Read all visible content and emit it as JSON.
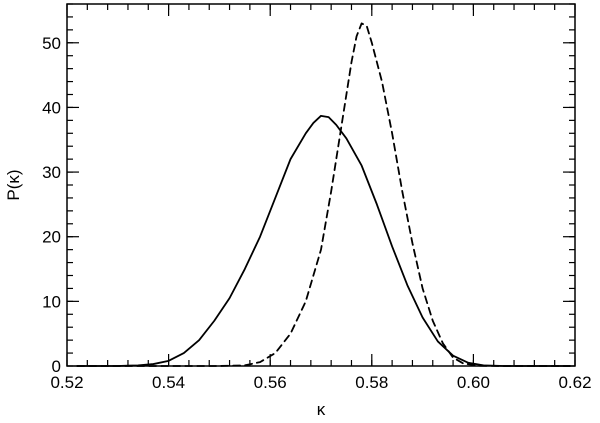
{
  "chart_data": {
    "type": "line",
    "title": "",
    "xlabel": "κ",
    "ylabel": "P(κ)",
    "xlim": [
      0.52,
      0.62
    ],
    "ylim": [
      0,
      56
    ],
    "x_ticks": [
      0.52,
      0.54,
      0.56,
      0.58,
      0.6,
      0.62
    ],
    "x_tick_labels": [
      "0.52",
      "0.54",
      "0.56",
      "0.58",
      "0.60",
      "0.62"
    ],
    "y_ticks": [
      0,
      10,
      20,
      30,
      40,
      50
    ],
    "y_tick_labels": [
      "0",
      "10",
      "20",
      "30",
      "40",
      "50"
    ],
    "x_minor_step": 0.004,
    "y_minor_step": 2,
    "grid": false,
    "legend": "none",
    "series": [
      {
        "line_style": "solid",
        "color": "#000000",
        "points": [
          [
            0.522,
            0.0
          ],
          [
            0.53,
            0.0
          ],
          [
            0.534,
            0.1
          ],
          [
            0.537,
            0.3
          ],
          [
            0.54,
            0.8
          ],
          [
            0.543,
            2.0
          ],
          [
            0.546,
            4.0
          ],
          [
            0.549,
            7.0
          ],
          [
            0.552,
            10.5
          ],
          [
            0.555,
            15.0
          ],
          [
            0.558,
            20.0
          ],
          [
            0.561,
            26.0
          ],
          [
            0.564,
            32.0
          ],
          [
            0.567,
            36.0
          ],
          [
            0.5685,
            37.6
          ],
          [
            0.57,
            38.7
          ],
          [
            0.5715,
            38.5
          ],
          [
            0.573,
            37.3
          ],
          [
            0.575,
            35.2
          ],
          [
            0.578,
            31.0
          ],
          [
            0.581,
            25.0
          ],
          [
            0.584,
            18.5
          ],
          [
            0.587,
            12.5
          ],
          [
            0.59,
            7.5
          ],
          [
            0.593,
            3.8
          ],
          [
            0.596,
            1.6
          ],
          [
            0.599,
            0.5
          ],
          [
            0.602,
            0.1
          ],
          [
            0.606,
            0.0
          ],
          [
            0.619,
            0.0
          ]
        ]
      },
      {
        "line_style": "dashed",
        "color": "#000000",
        "points": [
          [
            0.522,
            0.0
          ],
          [
            0.55,
            0.0
          ],
          [
            0.555,
            0.1
          ],
          [
            0.558,
            0.6
          ],
          [
            0.561,
            2.0
          ],
          [
            0.564,
            5.0
          ],
          [
            0.567,
            10.0
          ],
          [
            0.57,
            18.0
          ],
          [
            0.572,
            27.0
          ],
          [
            0.574,
            37.0
          ],
          [
            0.576,
            47.0
          ],
          [
            0.577,
            51.0
          ],
          [
            0.578,
            53.0
          ],
          [
            0.579,
            52.6
          ],
          [
            0.58,
            50.0
          ],
          [
            0.582,
            44.0
          ],
          [
            0.584,
            36.0
          ],
          [
            0.586,
            27.0
          ],
          [
            0.588,
            19.0
          ],
          [
            0.59,
            12.0
          ],
          [
            0.592,
            7.0
          ],
          [
            0.594,
            3.5
          ],
          [
            0.596,
            1.3
          ],
          [
            0.598,
            0.4
          ],
          [
            0.601,
            0.05
          ],
          [
            0.605,
            0.0
          ],
          [
            0.619,
            0.0
          ]
        ]
      }
    ]
  }
}
